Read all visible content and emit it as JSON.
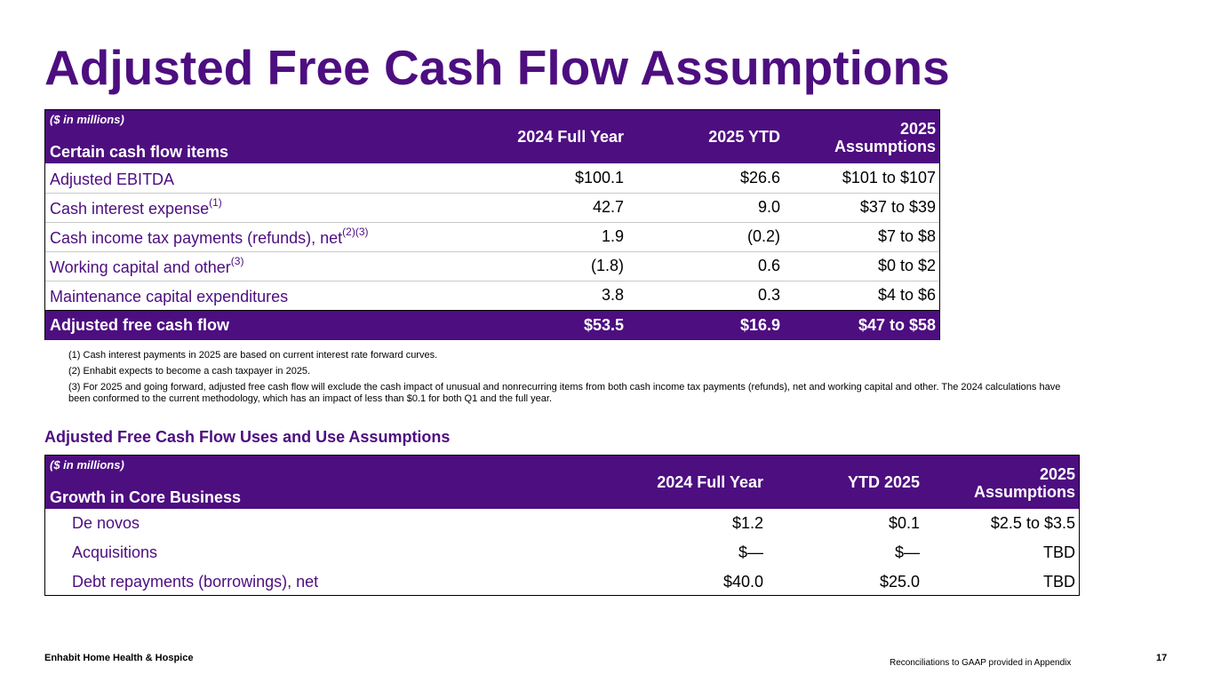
{
  "title": "Adjusted Free Cash Flow Assumptions",
  "table1": {
    "unit_note": "($ in millions)",
    "header_label": "Certain cash flow items",
    "columns": [
      "2024 Full Year",
      "2025 YTD",
      "2025",
      "Assumptions"
    ],
    "rows": [
      {
        "label": "Adjusted EBITDA",
        "sup": "",
        "values": [
          "$100.1",
          "$26.6",
          "$101 to $107"
        ]
      },
      {
        "label": "Cash interest expense",
        "sup": "(1)",
        "values": [
          "42.7",
          "9.0",
          "$37 to $39"
        ]
      },
      {
        "label": "Cash income tax payments (refunds), net",
        "sup": "(2)(3)",
        "values": [
          "1.9",
          "(0.2)",
          "$7 to $8"
        ]
      },
      {
        "label": "Working capital and other",
        "sup": "(3)",
        "values": [
          "(1.8)",
          "0.6",
          "$0 to $2"
        ]
      },
      {
        "label": "Maintenance capital expenditures",
        "sup": "",
        "values": [
          "3.8",
          "0.3",
          "$4 to $6"
        ]
      }
    ],
    "total": {
      "label": "Adjusted free cash flow",
      "values": [
        "$53.5",
        "$16.9",
        "$47 to $58"
      ]
    }
  },
  "notes": [
    "(1) Cash interest payments in 2025 are based on current interest rate forward curves.",
    "(2) Enhabit expects to become a cash taxpayer in 2025.",
    "(3) For 2025 and going forward, adjusted free cash flow will exclude the cash impact of unusual and nonrecurring items from both cash income tax payments (refunds), net and working capital and other.  The 2024 calculations have been conformed to the current methodology, which has an impact of less than $0.1 for both Q1 and the full year."
  ],
  "subtitle": "Adjusted Free Cash Flow Uses and Use Assumptions",
  "table2": {
    "unit_note": "($ in millions)",
    "header_label": "Growth in Core Business",
    "columns": [
      "2024 Full Year",
      "YTD 2025",
      "2025",
      "Assumptions"
    ],
    "rows": [
      {
        "label": "De novos",
        "values": [
          "$1.2",
          "$0.1",
          "$2.5 to $3.5"
        ]
      },
      {
        "label": "Acquisitions",
        "values": [
          "$—",
          "$—",
          "TBD"
        ]
      },
      {
        "label": "Debt repayments (borrowings), net",
        "values": [
          "$40.0",
          "$25.0",
          "TBD"
        ]
      }
    ]
  },
  "footer": {
    "company": "Enhabit Home Health & Hospice",
    "note": "Reconciliations to GAAP provided in Appendix",
    "page": "17"
  },
  "colors": {
    "brand_purple": "#4d0e80"
  }
}
